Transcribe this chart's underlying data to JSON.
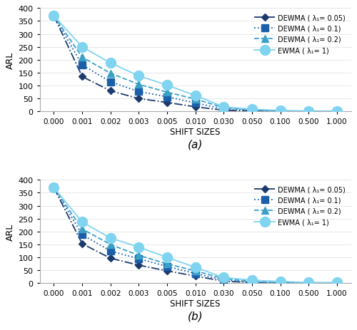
{
  "x_labels": [
    "0.000",
    "0.001",
    "0.002",
    "0.003",
    "0.005",
    "0.010",
    "0.030",
    "0.050",
    "0.100",
    "0.500",
    "1.000"
  ],
  "x_positions": [
    0,
    1,
    2,
    3,
    4,
    5,
    6,
    7,
    8,
    9,
    10
  ],
  "panel_a": {
    "dewma_005": [
      370,
      135,
      80,
      50,
      35,
      18,
      5,
      2,
      1,
      1,
      1
    ],
    "dewma_01": [
      370,
      180,
      115,
      77,
      57,
      33,
      10,
      4,
      2,
      1,
      1
    ],
    "dewma_02": [
      370,
      210,
      148,
      105,
      75,
      48,
      15,
      6,
      2,
      1,
      1
    ],
    "ewma_1": [
      370,
      250,
      188,
      138,
      102,
      62,
      18,
      9,
      4,
      2,
      2
    ]
  },
  "panel_b": {
    "dewma_005": [
      370,
      153,
      97,
      70,
      48,
      28,
      8,
      3,
      1,
      1,
      1
    ],
    "dewma_01": [
      370,
      188,
      125,
      95,
      65,
      38,
      12,
      5,
      2,
      1,
      1
    ],
    "dewma_02": [
      370,
      210,
      150,
      108,
      75,
      48,
      18,
      7,
      2,
      1,
      1
    ],
    "ewma_1": [
      370,
      237,
      175,
      140,
      100,
      62,
      22,
      12,
      7,
      3,
      3
    ]
  },
  "colors": {
    "dewma_005": "#1c3a6e",
    "dewma_01": "#1a5fa8",
    "dewma_02": "#3aa0c8",
    "ewma_1": "#80d4f0"
  },
  "legend_labels": [
    "DEWMA ( λ₁= 0.05)",
    "DEWMA ( λ₁= 0.1)",
    "DEWMA ( λ₁= 0.2)",
    "EWMA ( λ₁= 1)"
  ],
  "ylabel": "ARL",
  "xlabel": "SHIFT SIZES",
  "ylim": [
    0,
    400
  ],
  "yticks": [
    0,
    50,
    100,
    150,
    200,
    250,
    300,
    350,
    400
  ],
  "background_color": "#ffffff",
  "title_a": "(a)",
  "title_b": "(b)"
}
